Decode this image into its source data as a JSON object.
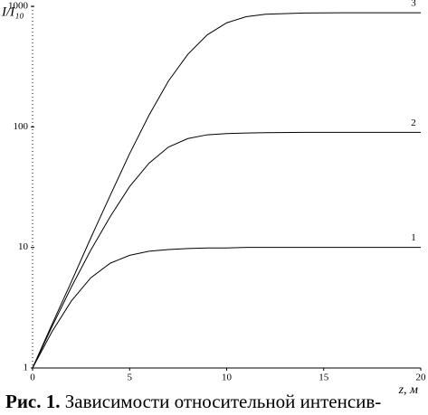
{
  "chart_data": {
    "type": "line",
    "y_label": "I/I₁₀",
    "x_label": "z, м",
    "caption_label": "Рис. 1.",
    "caption": "Зависимости относительной интенсив-",
    "x": [
      0,
      1,
      2,
      3,
      4,
      5,
      6,
      7,
      8,
      9,
      10,
      11,
      12,
      14,
      16,
      18,
      20
    ],
    "series": [
      {
        "name": "1",
        "color": "#000000",
        "values": [
          1,
          2,
          3.6,
          5.6,
          7.4,
          8.6,
          9.3,
          9.6,
          9.8,
          9.9,
          9.9,
          10,
          10,
          10,
          10,
          10,
          10
        ]
      },
      {
        "name": "2",
        "color": "#000000",
        "values": [
          1,
          2.2,
          4.7,
          9.5,
          18,
          32,
          50,
          68,
          80,
          86,
          88,
          89,
          89.5,
          90,
          90,
          90,
          90
        ]
      },
      {
        "name": "3",
        "color": "#000000",
        "values": [
          1,
          2.3,
          5.2,
          12,
          27,
          60,
          125,
          240,
          400,
          580,
          730,
          820,
          860,
          880,
          885,
          885,
          885
        ]
      }
    ],
    "xlim": [
      0,
      20
    ],
    "xticks": [
      0,
      5,
      10,
      15,
      20
    ],
    "ylim": [
      1,
      1000
    ],
    "yticks": [
      1,
      10,
      100,
      1000
    ],
    "log_y": true
  }
}
